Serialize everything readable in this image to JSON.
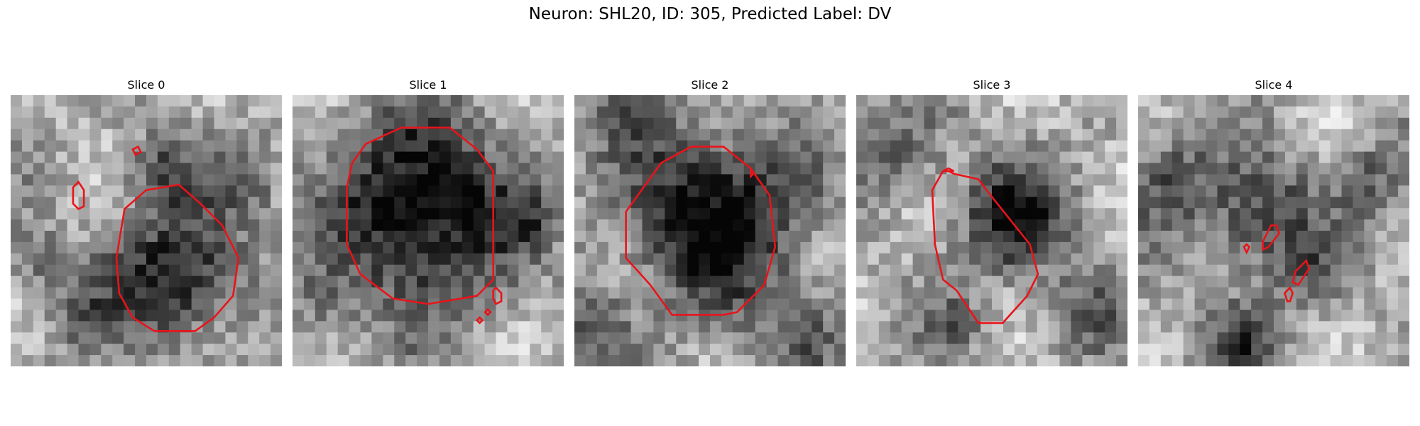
{
  "figure": {
    "title": "Neuron: SHL20, ID: 305, Predicted Label: DV",
    "contour_color": "#e8141a",
    "colormap": "gray",
    "panels": [
      {
        "title": "Slice 0"
      },
      {
        "title": "Slice 1"
      },
      {
        "title": "Slice 2"
      },
      {
        "title": "Slice 3"
      },
      {
        "title": "Slice 4"
      }
    ]
  }
}
